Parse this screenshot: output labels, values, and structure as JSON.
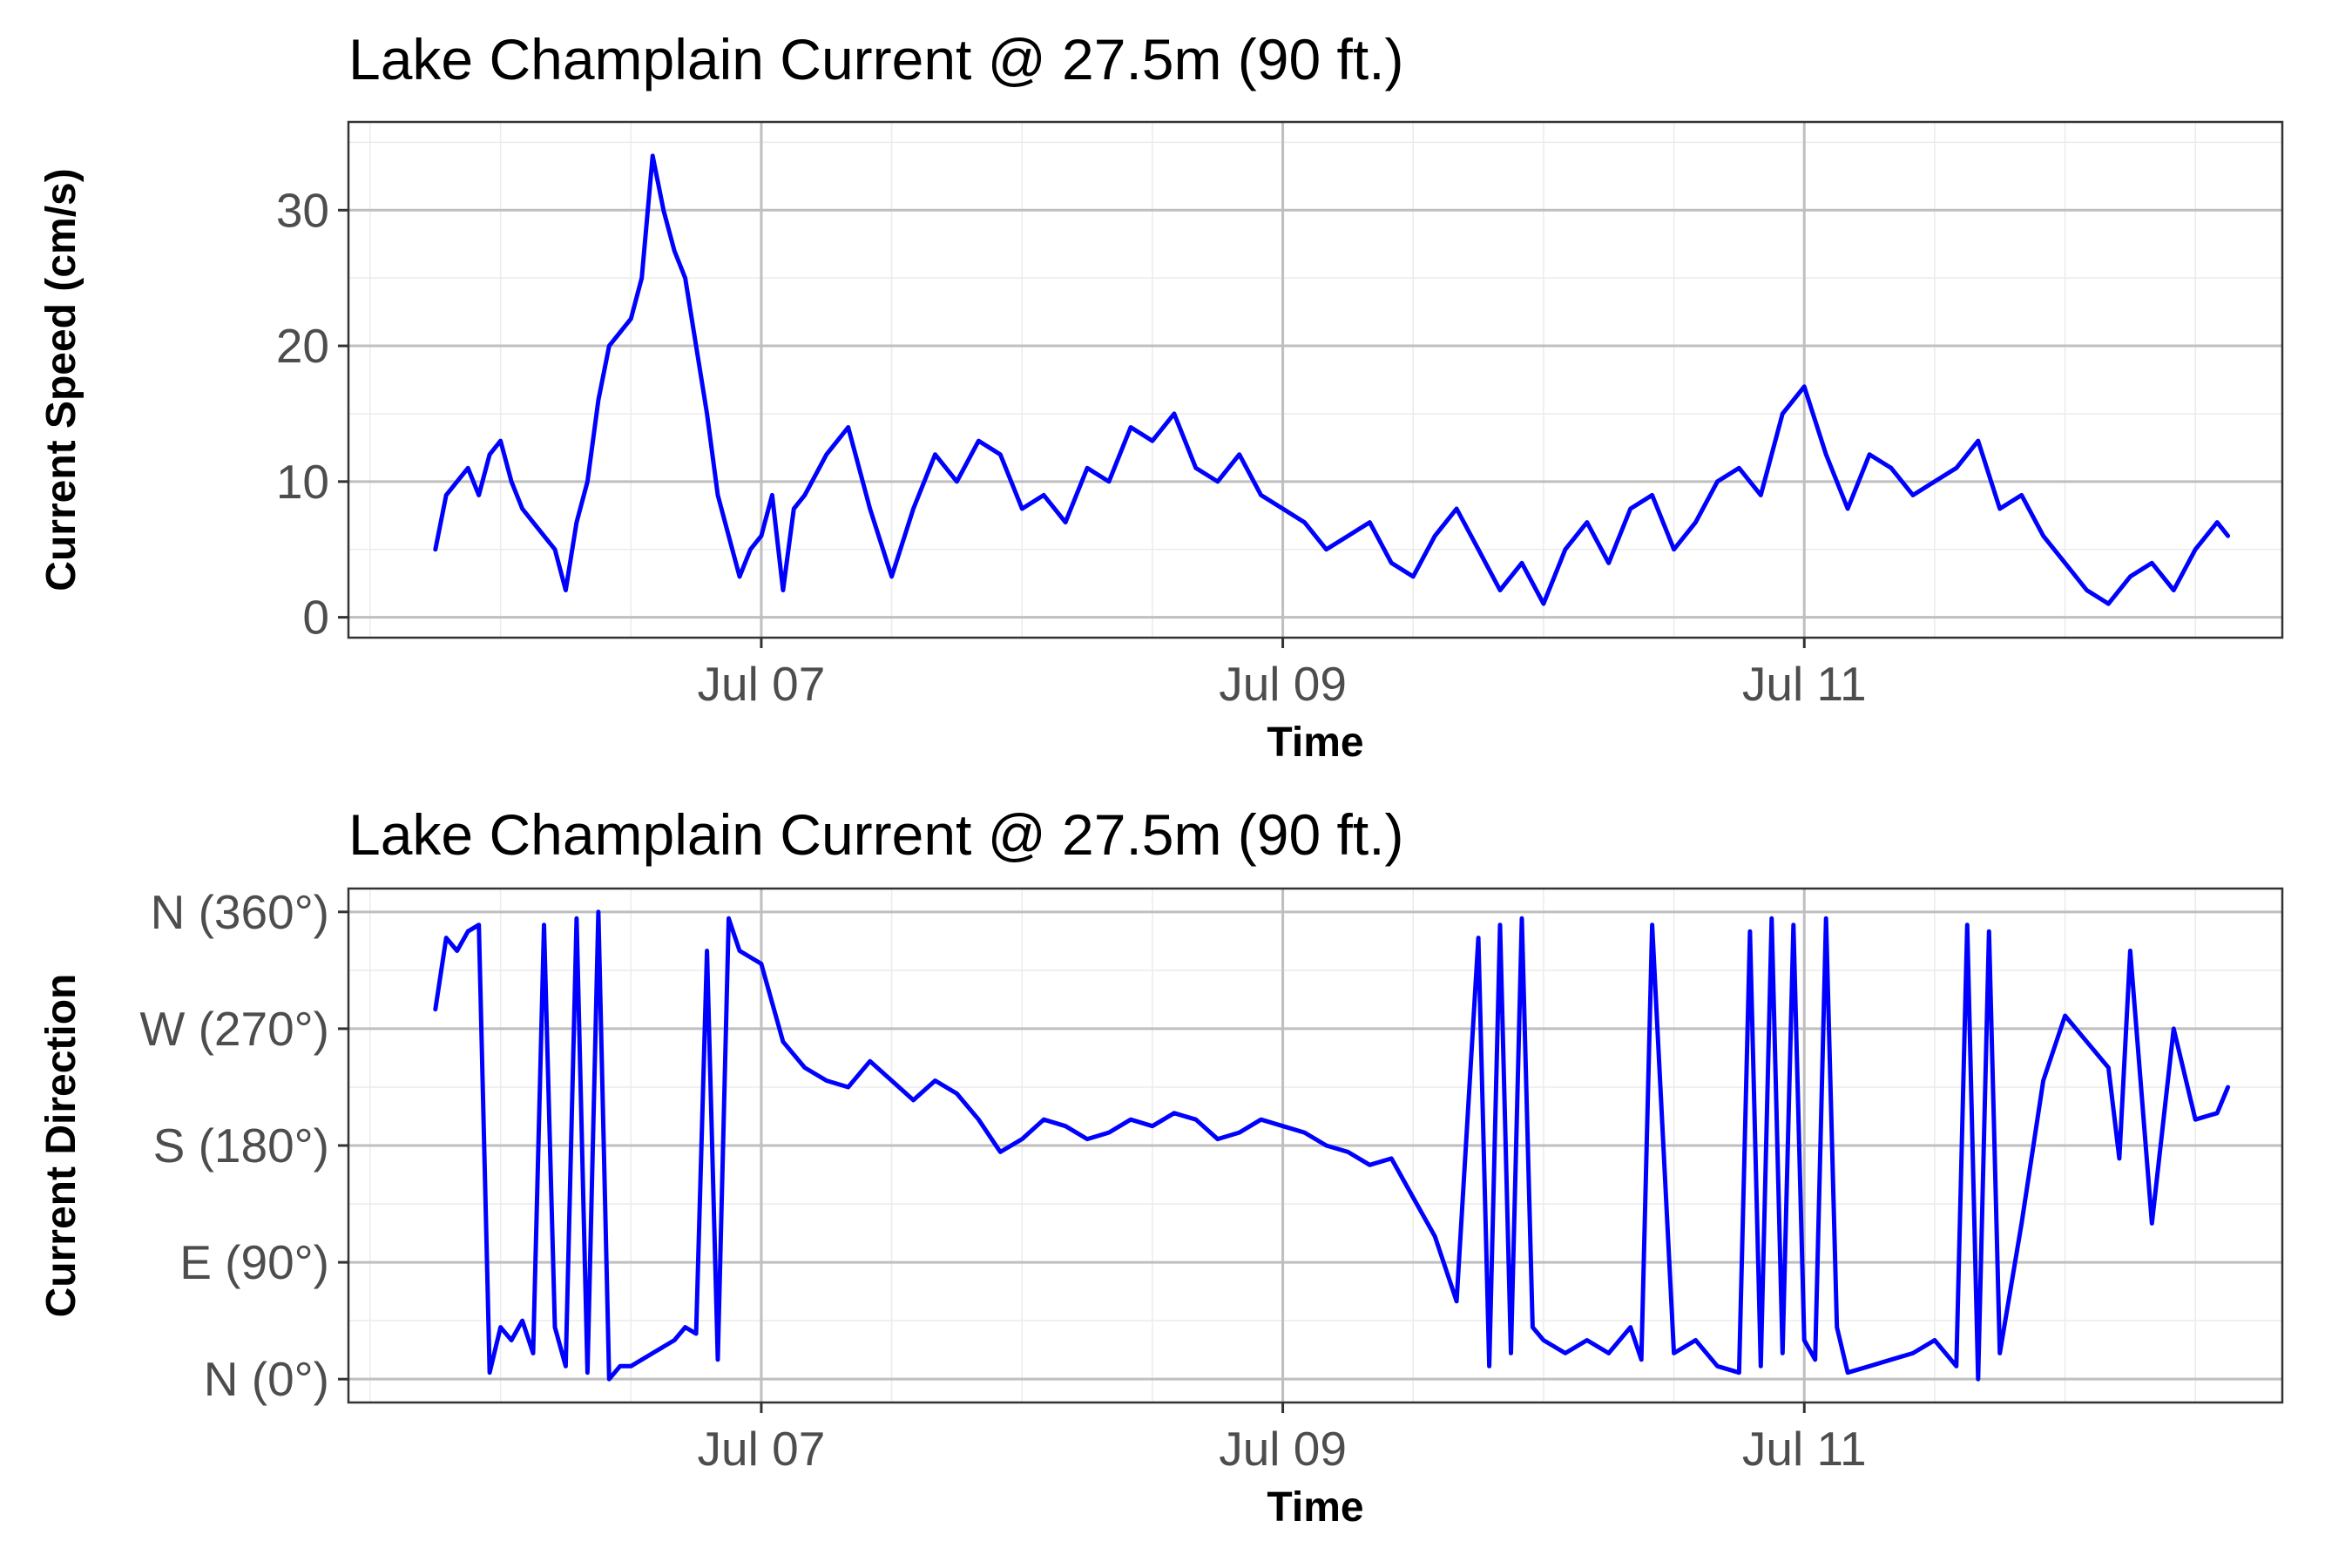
{
  "chart_data": [
    {
      "type": "line",
      "title": "Lake Champlain Current @ 27.5m (90 ft.)",
      "xlabel": "Time",
      "ylabel": "Current Speed (cm/s)",
      "xlim": [
        "2023-07-05T10:00",
        "2023-07-12T20:00"
      ],
      "ylim": [
        -1.5,
        36.5
      ],
      "x_ticks": [
        {
          "date": "2023-07-07T00:00",
          "label": "Jul 07"
        },
        {
          "date": "2023-07-09T00:00",
          "label": "Jul 09"
        },
        {
          "date": "2023-07-11T00:00",
          "label": "Jul 11"
        }
      ],
      "y_ticks": [
        {
          "value": 0,
          "label": "0"
        },
        {
          "value": 10,
          "label": "10"
        },
        {
          "value": 20,
          "label": "20"
        },
        {
          "value": 30,
          "label": "30"
        }
      ],
      "grid": true,
      "series_color": "#0000ff",
      "series": [
        {
          "x": [
            "2023-07-05T18:00",
            "2023-07-05T19:00",
            "2023-07-05T20:00",
            "2023-07-05T21:00",
            "2023-07-05T22:00",
            "2023-07-05T23:00",
            "2023-07-06T00:00",
            "2023-07-06T01:00",
            "2023-07-06T02:00",
            "2023-07-06T03:00",
            "2023-07-06T04:00",
            "2023-07-06T05:00",
            "2023-07-06T06:00",
            "2023-07-06T07:00",
            "2023-07-06T08:00",
            "2023-07-06T09:00",
            "2023-07-06T10:00",
            "2023-07-06T11:00",
            "2023-07-06T12:00",
            "2023-07-06T13:00",
            "2023-07-06T14:00",
            "2023-07-06T15:00",
            "2023-07-06T16:00",
            "2023-07-06T17:00",
            "2023-07-06T18:00",
            "2023-07-06T19:00",
            "2023-07-06T20:00",
            "2023-07-06T21:00",
            "2023-07-06T22:00",
            "2023-07-06T23:00",
            "2023-07-07T00:00",
            "2023-07-07T01:00",
            "2023-07-07T02:00",
            "2023-07-07T03:00",
            "2023-07-07T04:00",
            "2023-07-07T06:00",
            "2023-07-07T08:00",
            "2023-07-07T10:00",
            "2023-07-07T12:00",
            "2023-07-07T14:00",
            "2023-07-07T16:00",
            "2023-07-07T18:00",
            "2023-07-07T20:00",
            "2023-07-07T22:00",
            "2023-07-08T00:00",
            "2023-07-08T02:00",
            "2023-07-08T04:00",
            "2023-07-08T06:00",
            "2023-07-08T08:00",
            "2023-07-08T10:00",
            "2023-07-08T12:00",
            "2023-07-08T14:00",
            "2023-07-08T16:00",
            "2023-07-08T18:00",
            "2023-07-08T20:00",
            "2023-07-08T22:00",
            "2023-07-09T00:00",
            "2023-07-09T02:00",
            "2023-07-09T04:00",
            "2023-07-09T06:00",
            "2023-07-09T08:00",
            "2023-07-09T10:00",
            "2023-07-09T12:00",
            "2023-07-09T14:00",
            "2023-07-09T16:00",
            "2023-07-09T18:00",
            "2023-07-09T20:00",
            "2023-07-09T22:00",
            "2023-07-10T00:00",
            "2023-07-10T02:00",
            "2023-07-10T04:00",
            "2023-07-10T06:00",
            "2023-07-10T08:00",
            "2023-07-10T10:00",
            "2023-07-10T12:00",
            "2023-07-10T14:00",
            "2023-07-10T16:00",
            "2023-07-10T18:00",
            "2023-07-10T20:00",
            "2023-07-10T22:00",
            "2023-07-11T00:00",
            "2023-07-11T02:00",
            "2023-07-11T04:00",
            "2023-07-11T06:00",
            "2023-07-11T08:00",
            "2023-07-11T10:00",
            "2023-07-11T12:00",
            "2023-07-11T14:00",
            "2023-07-11T16:00",
            "2023-07-11T18:00",
            "2023-07-11T20:00",
            "2023-07-11T22:00",
            "2023-07-12T00:00",
            "2023-07-12T02:00",
            "2023-07-12T04:00",
            "2023-07-12T06:00",
            "2023-07-12T08:00",
            "2023-07-12T10:00",
            "2023-07-12T12:00",
            "2023-07-12T14:00",
            "2023-07-12T15:00"
          ],
          "y": [
            5,
            9,
            10,
            11,
            9,
            12,
            13,
            10,
            8,
            7,
            6,
            5,
            2,
            7,
            10,
            16,
            20,
            21,
            22,
            25,
            34,
            30,
            27,
            25,
            20,
            15,
            9,
            6,
            3,
            5,
            6,
            9,
            2,
            8,
            9,
            12,
            14,
            8,
            3,
            8,
            12,
            10,
            13,
            12,
            8,
            9,
            7,
            11,
            10,
            14,
            13,
            15,
            11,
            10,
            12,
            9,
            8,
            7,
            5,
            6,
            7,
            4,
            3,
            6,
            8,
            5,
            2,
            4,
            1,
            5,
            7,
            4,
            8,
            9,
            5,
            7,
            10,
            11,
            9,
            15,
            17,
            12,
            8,
            12,
            11,
            9,
            10,
            11,
            13,
            8,
            9,
            6,
            4,
            2,
            1,
            3,
            4,
            2,
            5,
            7,
            6
          ]
        }
      ]
    },
    {
      "type": "line",
      "title": "Lake Champlain Current @ 27.5m (90 ft.)",
      "xlabel": "Time",
      "ylabel": "Current Direction",
      "xlim": [
        "2023-07-05T10:00",
        "2023-07-12T20:00"
      ],
      "ylim": [
        -18,
        378
      ],
      "x_ticks": [
        {
          "date": "2023-07-07T00:00",
          "label": "Jul 07"
        },
        {
          "date": "2023-07-09T00:00",
          "label": "Jul 09"
        },
        {
          "date": "2023-07-11T00:00",
          "label": "Jul 11"
        }
      ],
      "y_ticks": [
        {
          "value": 0,
          "label": "N (0°)"
        },
        {
          "value": 90,
          "label": "E (90°)"
        },
        {
          "value": 180,
          "label": "S (180°)"
        },
        {
          "value": 270,
          "label": "W (270°)"
        },
        {
          "value": 360,
          "label": "N (360°)"
        }
      ],
      "grid": true,
      "series_color": "#0000ff",
      "series": [
        {
          "x": [
            "2023-07-05T18:00",
            "2023-07-05T19:00",
            "2023-07-05T20:00",
            "2023-07-05T21:00",
            "2023-07-05T22:00",
            "2023-07-05T23:00",
            "2023-07-06T00:00",
            "2023-07-06T01:00",
            "2023-07-06T02:00",
            "2023-07-06T03:00",
            "2023-07-06T04:00",
            "2023-07-06T05:00",
            "2023-07-06T06:00",
            "2023-07-06T07:00",
            "2023-07-06T08:00",
            "2023-07-06T09:00",
            "2023-07-06T10:00",
            "2023-07-06T11:00",
            "2023-07-06T12:00",
            "2023-07-06T14:00",
            "2023-07-06T16:00",
            "2023-07-06T17:00",
            "2023-07-06T18:00",
            "2023-07-06T19:00",
            "2023-07-06T20:00",
            "2023-07-06T21:00",
            "2023-07-06T22:00",
            "2023-07-07T00:00",
            "2023-07-07T02:00",
            "2023-07-07T04:00",
            "2023-07-07T06:00",
            "2023-07-07T08:00",
            "2023-07-07T10:00",
            "2023-07-07T12:00",
            "2023-07-07T14:00",
            "2023-07-07T16:00",
            "2023-07-07T18:00",
            "2023-07-07T20:00",
            "2023-07-07T22:00",
            "2023-07-08T00:00",
            "2023-07-08T02:00",
            "2023-07-08T04:00",
            "2023-07-08T06:00",
            "2023-07-08T08:00",
            "2023-07-08T10:00",
            "2023-07-08T12:00",
            "2023-07-08T14:00",
            "2023-07-08T16:00",
            "2023-07-08T18:00",
            "2023-07-08T20:00",
            "2023-07-08T22:00",
            "2023-07-09T00:00",
            "2023-07-09T02:00",
            "2023-07-09T04:00",
            "2023-07-09T06:00",
            "2023-07-09T08:00",
            "2023-07-09T10:00",
            "2023-07-09T12:00",
            "2023-07-09T14:00",
            "2023-07-09T16:00",
            "2023-07-09T18:00",
            "2023-07-09T19:00",
            "2023-07-09T20:00",
            "2023-07-09T21:00",
            "2023-07-09T22:00",
            "2023-07-09T23:00",
            "2023-07-10T00:00",
            "2023-07-10T02:00",
            "2023-07-10T04:00",
            "2023-07-10T06:00",
            "2023-07-10T08:00",
            "2023-07-10T09:00",
            "2023-07-10T10:00",
            "2023-07-10T12:00",
            "2023-07-10T14:00",
            "2023-07-10T16:00",
            "2023-07-10T18:00",
            "2023-07-10T19:00",
            "2023-07-10T20:00",
            "2023-07-10T21:00",
            "2023-07-10T22:00",
            "2023-07-10T23:00",
            "2023-07-11T00:00",
            "2023-07-11T01:00",
            "2023-07-11T02:00",
            "2023-07-11T03:00",
            "2023-07-11T04:00",
            "2023-07-11T06:00",
            "2023-07-11T08:00",
            "2023-07-11T10:00",
            "2023-07-11T12:00",
            "2023-07-11T14:00",
            "2023-07-11T15:00",
            "2023-07-11T16:00",
            "2023-07-11T17:00",
            "2023-07-11T18:00",
            "2023-07-11T19:00",
            "2023-07-11T20:00",
            "2023-07-11T22:00",
            "2023-07-12T00:00",
            "2023-07-12T02:00",
            "2023-07-12T04:00",
            "2023-07-12T05:00",
            "2023-07-12T06:00",
            "2023-07-12T08:00",
            "2023-07-12T10:00",
            "2023-07-12T12:00",
            "2023-07-12T14:00",
            "2023-07-12T15:00"
          ],
          "y": [
            285,
            340,
            330,
            345,
            350,
            5,
            40,
            30,
            45,
            20,
            350,
            40,
            10,
            355,
            5,
            360,
            0,
            10,
            10,
            20,
            30,
            40,
            35,
            330,
            15,
            355,
            330,
            320,
            260,
            240,
            230,
            225,
            245,
            230,
            215,
            230,
            220,
            200,
            175,
            185,
            200,
            195,
            185,
            190,
            200,
            195,
            205,
            200,
            185,
            190,
            200,
            195,
            190,
            180,
            175,
            165,
            170,
            140,
            110,
            60,
            340,
            10,
            350,
            20,
            355,
            40,
            30,
            20,
            30,
            20,
            40,
            15,
            350,
            20,
            30,
            10,
            5,
            345,
            10,
            355,
            20,
            350,
            30,
            15,
            355,
            40,
            5,
            10,
            15,
            20,
            30,
            10,
            350,
            0,
            345,
            20,
            70,
            120,
            230,
            280,
            260,
            240,
            170,
            330,
            120,
            270,
            200,
            205,
            225
          ]
        }
      ]
    }
  ]
}
